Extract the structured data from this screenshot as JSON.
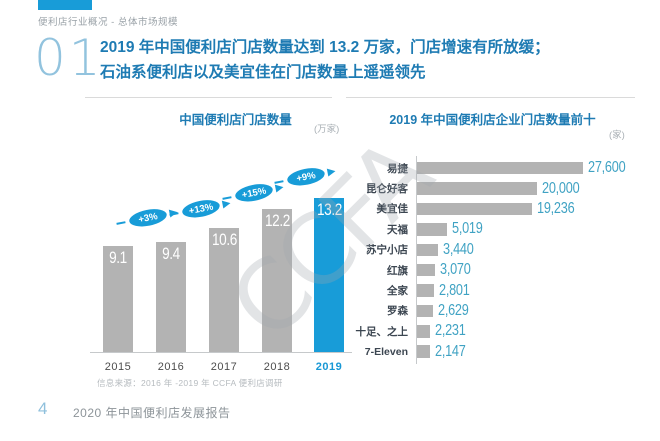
{
  "page": {
    "breadcrumb": "便利店行业概况 - 总体市场规模",
    "section_number": "01",
    "title_line1": "2019 年中国便利店门店数量达到 13.2 万家，门店增速有所放缓；",
    "title_line2": "石油系便利店以及美宜佳在门店数量上遥遥领先",
    "watermark": "CCFA",
    "source_note": "信息来源：2016 年 -2019 年 CCFA 便利店调研",
    "footer_page": "4",
    "footer_title": "2020 年中国便利店发展报告"
  },
  "colors": {
    "accent_blue": "#189cd8",
    "title_blue": "#1e7bb3",
    "bar_gray": "#b3b3b3",
    "value_teal": "#3fa2c3"
  },
  "chart_data": [
    {
      "type": "bar",
      "orientation": "vertical",
      "title": "中国便利店门店数量",
      "unit": "(万家)",
      "ylabel": "门店数量（万家）",
      "categories": [
        "2015",
        "2016",
        "2017",
        "2018",
        "2019"
      ],
      "values": [
        9.1,
        9.4,
        10.6,
        12.2,
        13.2
      ],
      "value_labels": [
        "9.1",
        "9.4",
        "10.6",
        "12.2",
        "13.2"
      ],
      "growth_labels": [
        "+3%",
        "+13%",
        "+15%",
        "+9%"
      ],
      "highlight_category": "2019",
      "ylim": [
        0,
        14
      ],
      "grid": false
    },
    {
      "type": "bar",
      "orientation": "horizontal",
      "title": "2019 年中国便利店企业门店数量前十",
      "unit": "(家)",
      "categories": [
        "易捷",
        "昆仑好客",
        "美宜佳",
        "天福",
        "苏宁小店",
        "红旗",
        "全家",
        "罗森",
        "十足、之上",
        "7-Eleven"
      ],
      "values": [
        27600,
        20000,
        19236,
        5019,
        3440,
        3070,
        2801,
        2629,
        2231,
        2147
      ],
      "value_labels": [
        "27,600",
        "20,000",
        "19,236",
        "5,019",
        "3,440",
        "3,070",
        "2,801",
        "2,629",
        "2,231",
        "2,147"
      ],
      "xlim": [
        0,
        28000
      ],
      "grid": false
    }
  ]
}
